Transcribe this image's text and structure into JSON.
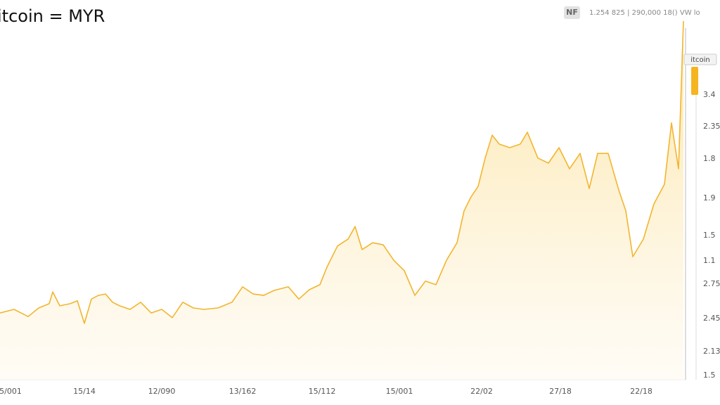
{
  "chart_data": {
    "type": "line",
    "title": "itcoin = MYR",
    "badge": "NF",
    "header_text": "1.254 825 | 290,000 18() VW lo",
    "tag": "itcoin",
    "color": "#f2b52f",
    "xlim": [
      0,
      1000
    ],
    "ylim": [
      0,
      100
    ],
    "xticks": [
      {
        "value": 15,
        "label": "5/001"
      },
      {
        "value": 120,
        "label": "15/14"
      },
      {
        "value": 230,
        "label": "12/090"
      },
      {
        "value": 345,
        "label": "13/162"
      },
      {
        "value": 458,
        "label": "15/112"
      },
      {
        "value": 568,
        "label": "15/001"
      },
      {
        "value": 685,
        "label": "22/02"
      },
      {
        "value": 797,
        "label": "27/18"
      },
      {
        "value": 912,
        "label": "22/18"
      }
    ],
    "y_axis_labels": [
      "3.4",
      "2.35",
      "1.8",
      "1.9",
      "1.5",
      "1.1",
      "2.75",
      "2.45",
      "2.13",
      "1.5"
    ],
    "x": [
      0,
      20,
      40,
      55,
      70,
      75,
      85,
      100,
      110,
      120,
      130,
      140,
      150,
      160,
      170,
      185,
      200,
      215,
      230,
      245,
      260,
      275,
      290,
      310,
      330,
      345,
      360,
      375,
      390,
      410,
      425,
      440,
      455,
      465,
      480,
      495,
      505,
      515,
      530,
      545,
      560,
      575,
      590,
      605,
      620,
      635,
      650,
      660,
      670,
      680,
      690,
      700,
      710,
      725,
      740,
      750,
      765,
      780,
      795,
      810,
      825,
      838,
      850,
      865,
      880,
      890,
      900,
      915,
      930,
      945,
      955,
      965,
      972
    ],
    "values": [
      18.6,
      19.6,
      17.6,
      20,
      21.2,
      24.5,
      20.6,
      21.2,
      22,
      15.7,
      22.5,
      23.5,
      23.9,
      21.6,
      20.6,
      19.6,
      21.6,
      18.6,
      19.6,
      17.3,
      21.6,
      20,
      19.6,
      20,
      21.6,
      25.9,
      23.9,
      23.5,
      24.9,
      25.9,
      22.5,
      25.1,
      26.5,
      31.4,
      37.3,
      39.2,
      42.7,
      36.3,
      38.2,
      37.6,
      33.3,
      30.4,
      23.5,
      27.5,
      26.5,
      33.3,
      38.2,
      47.1,
      51,
      53.9,
      61.8,
      68.2,
      65.7,
      64.7,
      65.7,
      69,
      61.8,
      60.4,
      64.7,
      58.8,
      63.1,
      53.3,
      63.1,
      63.1,
      52.9,
      47.1,
      34.3,
      39.2,
      49,
      54.5,
      71.6,
      58.8,
      100
    ]
  }
}
